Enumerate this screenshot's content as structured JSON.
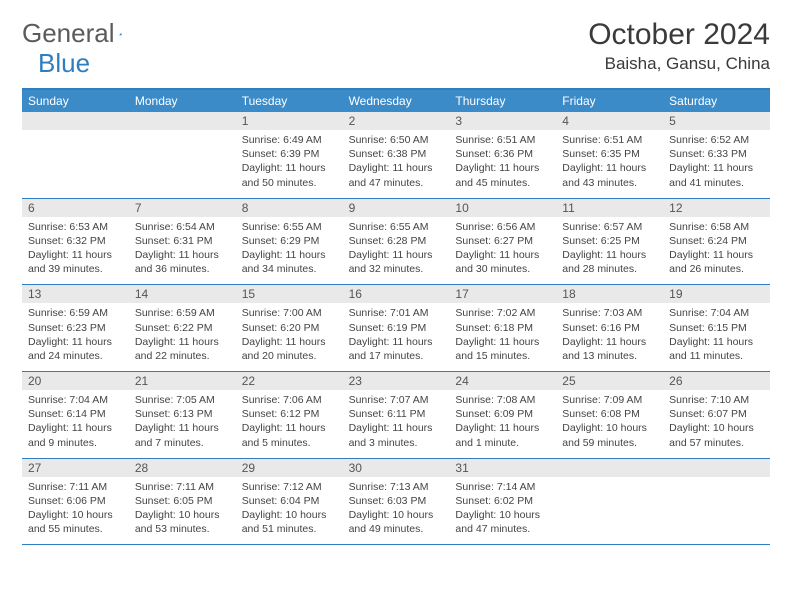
{
  "logo": {
    "text1": "General",
    "text2": "Blue"
  },
  "title": "October 2024",
  "location": "Baisha, Gansu, China",
  "colors": {
    "header_bg": "#3b8bc9",
    "border": "#2f7ec0",
    "daynum_bg": "#e9e9e9",
    "text": "#383838",
    "logo_gray": "#5b5b5b",
    "logo_blue": "#2f7ec0"
  },
  "dow": [
    "Sunday",
    "Monday",
    "Tuesday",
    "Wednesday",
    "Thursday",
    "Friday",
    "Saturday"
  ],
  "weeks": [
    {
      "nums": [
        "",
        "",
        "1",
        "2",
        "3",
        "4",
        "5"
      ],
      "cells": [
        null,
        null,
        {
          "sunrise": "Sunrise: 6:49 AM",
          "sunset": "Sunset: 6:39 PM",
          "daylight": "Daylight: 11 hours and 50 minutes."
        },
        {
          "sunrise": "Sunrise: 6:50 AM",
          "sunset": "Sunset: 6:38 PM",
          "daylight": "Daylight: 11 hours and 47 minutes."
        },
        {
          "sunrise": "Sunrise: 6:51 AM",
          "sunset": "Sunset: 6:36 PM",
          "daylight": "Daylight: 11 hours and 45 minutes."
        },
        {
          "sunrise": "Sunrise: 6:51 AM",
          "sunset": "Sunset: 6:35 PM",
          "daylight": "Daylight: 11 hours and 43 minutes."
        },
        {
          "sunrise": "Sunrise: 6:52 AM",
          "sunset": "Sunset: 6:33 PM",
          "daylight": "Daylight: 11 hours and 41 minutes."
        }
      ]
    },
    {
      "nums": [
        "6",
        "7",
        "8",
        "9",
        "10",
        "11",
        "12"
      ],
      "cells": [
        {
          "sunrise": "Sunrise: 6:53 AM",
          "sunset": "Sunset: 6:32 PM",
          "daylight": "Daylight: 11 hours and 39 minutes."
        },
        {
          "sunrise": "Sunrise: 6:54 AM",
          "sunset": "Sunset: 6:31 PM",
          "daylight": "Daylight: 11 hours and 36 minutes."
        },
        {
          "sunrise": "Sunrise: 6:55 AM",
          "sunset": "Sunset: 6:29 PM",
          "daylight": "Daylight: 11 hours and 34 minutes."
        },
        {
          "sunrise": "Sunrise: 6:55 AM",
          "sunset": "Sunset: 6:28 PM",
          "daylight": "Daylight: 11 hours and 32 minutes."
        },
        {
          "sunrise": "Sunrise: 6:56 AM",
          "sunset": "Sunset: 6:27 PM",
          "daylight": "Daylight: 11 hours and 30 minutes."
        },
        {
          "sunrise": "Sunrise: 6:57 AM",
          "sunset": "Sunset: 6:25 PM",
          "daylight": "Daylight: 11 hours and 28 minutes."
        },
        {
          "sunrise": "Sunrise: 6:58 AM",
          "sunset": "Sunset: 6:24 PM",
          "daylight": "Daylight: 11 hours and 26 minutes."
        }
      ]
    },
    {
      "nums": [
        "13",
        "14",
        "15",
        "16",
        "17",
        "18",
        "19"
      ],
      "cells": [
        {
          "sunrise": "Sunrise: 6:59 AM",
          "sunset": "Sunset: 6:23 PM",
          "daylight": "Daylight: 11 hours and 24 minutes."
        },
        {
          "sunrise": "Sunrise: 6:59 AM",
          "sunset": "Sunset: 6:22 PM",
          "daylight": "Daylight: 11 hours and 22 minutes."
        },
        {
          "sunrise": "Sunrise: 7:00 AM",
          "sunset": "Sunset: 6:20 PM",
          "daylight": "Daylight: 11 hours and 20 minutes."
        },
        {
          "sunrise": "Sunrise: 7:01 AM",
          "sunset": "Sunset: 6:19 PM",
          "daylight": "Daylight: 11 hours and 17 minutes."
        },
        {
          "sunrise": "Sunrise: 7:02 AM",
          "sunset": "Sunset: 6:18 PM",
          "daylight": "Daylight: 11 hours and 15 minutes."
        },
        {
          "sunrise": "Sunrise: 7:03 AM",
          "sunset": "Sunset: 6:16 PM",
          "daylight": "Daylight: 11 hours and 13 minutes."
        },
        {
          "sunrise": "Sunrise: 7:04 AM",
          "sunset": "Sunset: 6:15 PM",
          "daylight": "Daylight: 11 hours and 11 minutes."
        }
      ]
    },
    {
      "nums": [
        "20",
        "21",
        "22",
        "23",
        "24",
        "25",
        "26"
      ],
      "cells": [
        {
          "sunrise": "Sunrise: 7:04 AM",
          "sunset": "Sunset: 6:14 PM",
          "daylight": "Daylight: 11 hours and 9 minutes."
        },
        {
          "sunrise": "Sunrise: 7:05 AM",
          "sunset": "Sunset: 6:13 PM",
          "daylight": "Daylight: 11 hours and 7 minutes."
        },
        {
          "sunrise": "Sunrise: 7:06 AM",
          "sunset": "Sunset: 6:12 PM",
          "daylight": "Daylight: 11 hours and 5 minutes."
        },
        {
          "sunrise": "Sunrise: 7:07 AM",
          "sunset": "Sunset: 6:11 PM",
          "daylight": "Daylight: 11 hours and 3 minutes."
        },
        {
          "sunrise": "Sunrise: 7:08 AM",
          "sunset": "Sunset: 6:09 PM",
          "daylight": "Daylight: 11 hours and 1 minute."
        },
        {
          "sunrise": "Sunrise: 7:09 AM",
          "sunset": "Sunset: 6:08 PM",
          "daylight": "Daylight: 10 hours and 59 minutes."
        },
        {
          "sunrise": "Sunrise: 7:10 AM",
          "sunset": "Sunset: 6:07 PM",
          "daylight": "Daylight: 10 hours and 57 minutes."
        }
      ]
    },
    {
      "nums": [
        "27",
        "28",
        "29",
        "30",
        "31",
        "",
        ""
      ],
      "cells": [
        {
          "sunrise": "Sunrise: 7:11 AM",
          "sunset": "Sunset: 6:06 PM",
          "daylight": "Daylight: 10 hours and 55 minutes."
        },
        {
          "sunrise": "Sunrise: 7:11 AM",
          "sunset": "Sunset: 6:05 PM",
          "daylight": "Daylight: 10 hours and 53 minutes."
        },
        {
          "sunrise": "Sunrise: 7:12 AM",
          "sunset": "Sunset: 6:04 PM",
          "daylight": "Daylight: 10 hours and 51 minutes."
        },
        {
          "sunrise": "Sunrise: 7:13 AM",
          "sunset": "Sunset: 6:03 PM",
          "daylight": "Daylight: 10 hours and 49 minutes."
        },
        {
          "sunrise": "Sunrise: 7:14 AM",
          "sunset": "Sunset: 6:02 PM",
          "daylight": "Daylight: 10 hours and 47 minutes."
        },
        null,
        null
      ]
    }
  ]
}
